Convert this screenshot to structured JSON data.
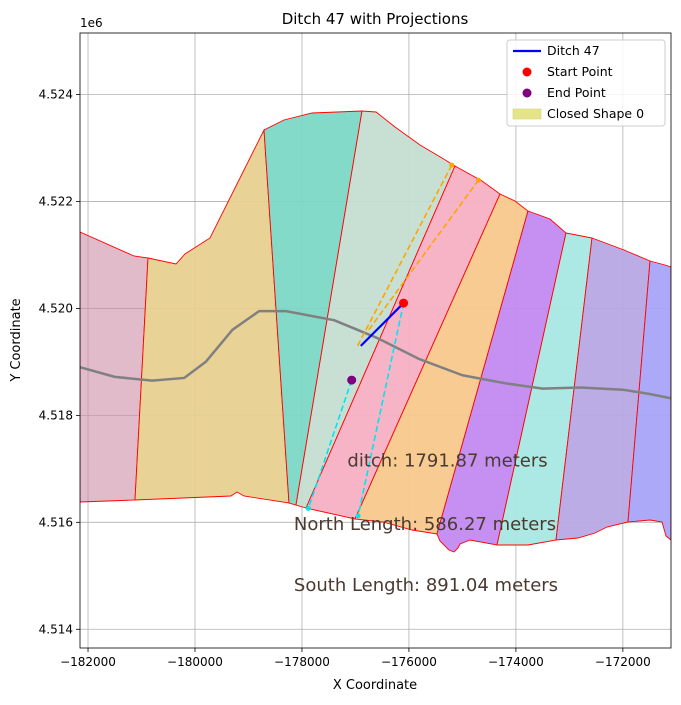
{
  "chart_data": {
    "type": "map",
    "title": "Ditch 47 with Projections",
    "xlabel": "X Coordinate",
    "ylabel": "Y Coordinate",
    "y_offset_label": "1e6",
    "xlim": [
      -182150,
      -171100
    ],
    "ylim": [
      4.51365,
      4.52515
    ],
    "x_ticks": [
      -182000,
      -180000,
      -178000,
      -176000,
      -174000,
      -172000
    ],
    "x_tick_labels": [
      "−182000",
      "−180000",
      "−178000",
      "−176000",
      "−174000",
      "−172000"
    ],
    "y_ticks": [
      4.514,
      4.516,
      4.518,
      4.52,
      4.522,
      4.524
    ],
    "y_tick_labels": [
      "4.514",
      "4.516",
      "4.518",
      "4.520",
      "4.522",
      "4.524"
    ],
    "grid": true,
    "legend_position": "top-right",
    "legend": [
      {
        "label": "Ditch 47",
        "kind": "line",
        "color": "#0000ff"
      },
      {
        "label": "Start Point",
        "kind": "dot",
        "color": "#ff0000"
      },
      {
        "label": "End Point",
        "kind": "dot",
        "color": "#800080"
      },
      {
        "label": "Closed Shape 0",
        "kind": "patch",
        "color": "#e6e48a"
      }
    ],
    "region_colors": [
      "#ce8ea6",
      "#e8d090",
      "#7dd8c6",
      "#c5ded2",
      "#f8b0c4",
      "#f7c88c",
      "#c28af0",
      "#a8e8e4",
      "#b8a8e4",
      "#a8a4f8"
    ],
    "annotations": [
      {
        "text": "ditch: 1791.87 meters",
        "x": -177150,
        "y": 4.51704
      },
      {
        "text": "North Length: 586.27 meters",
        "x": -178150,
        "y": 4.51586
      },
      {
        "text": "South Length: 891.04 meters",
        "x": -178150,
        "y": 4.51472
      }
    ],
    "ditch_line": {
      "color": "#0000ff",
      "x": [
        -176100,
        -176550,
        -176900
      ],
      "y": [
        4.5201,
        4.51965,
        4.5193
      ]
    },
    "start_point": {
      "x": -176100,
      "y": 4.5201,
      "color": "#ff0000"
    },
    "end_point": {
      "x": -177070,
      "y": 4.51866,
      "color": "#800080"
    },
    "projections_north": {
      "color": "#ffa500",
      "lines": [
        {
          "x": [
            -176960,
            -175200
          ],
          "y": [
            4.5193,
            4.52268
          ]
        },
        {
          "x": [
            -176750,
            -174700
          ],
          "y": [
            4.5196,
            4.5224
          ]
        }
      ]
    },
    "projections_south": {
      "color": "#00e5ee",
      "lines": [
        {
          "x": [
            -177070,
            -177880
          ],
          "y": [
            4.51866,
            4.51626
          ]
        },
        {
          "x": [
            -176100,
            -176950
          ],
          "y": [
            4.5201,
            4.51612
          ]
        }
      ]
    },
    "river": {
      "color": "#808080",
      "x": [
        -182150,
        -181500,
        -180800,
        -180200,
        -179800,
        -179300,
        -178800,
        -178300,
        -177400,
        -176600,
        -175800,
        -175000,
        -174200,
        -173500,
        -172800,
        -172000,
        -171500,
        -171100
      ],
      "y": [
        4.5189,
        4.51872,
        4.51865,
        4.5187,
        4.519,
        4.5196,
        4.51995,
        4.51995,
        4.51978,
        4.51945,
        4.51905,
        4.51875,
        4.5186,
        4.5185,
        4.51852,
        4.51848,
        4.5184,
        4.51832
      ]
    }
  }
}
